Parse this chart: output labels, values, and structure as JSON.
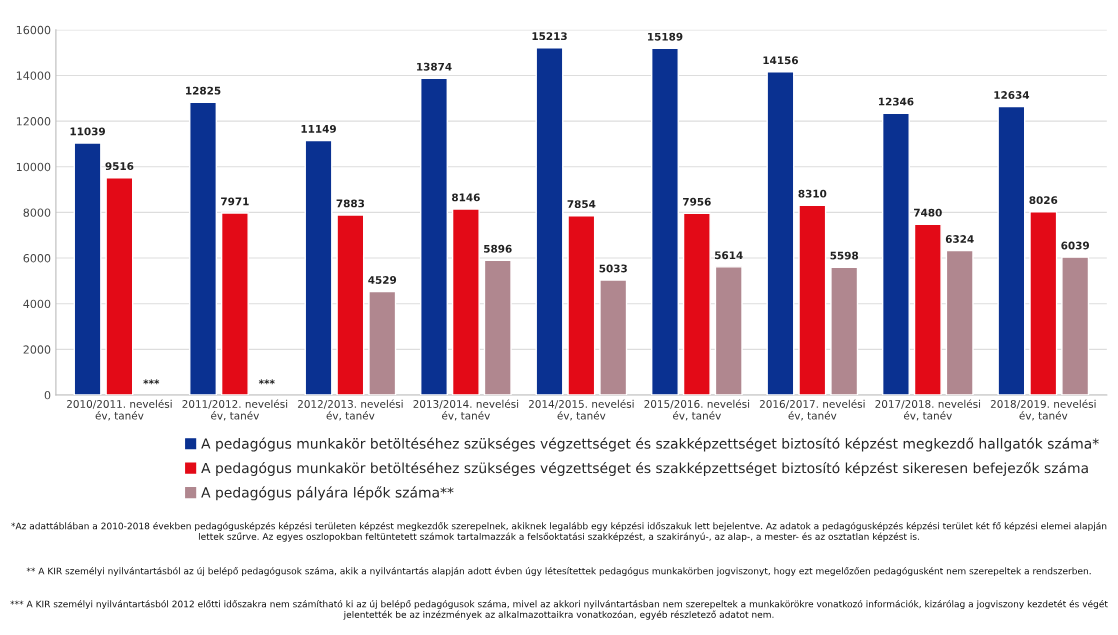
{
  "chart_data": {
    "type": "bar",
    "categories": [
      "2010/2011. nevelési\név, tanév",
      "2011/2012. nevelési\név, tanév",
      "2012/2013. nevelési\név, tanév",
      "2013/2014. nevelési\név, tanév",
      "2014/2015. nevelési\név, tanév",
      "2015/2016. nevelési\név, tanév",
      "2016/2017. nevelési\név, tanév",
      "2017/2018. nevelési\név, tanév",
      "2018/2019. nevelési\név, tanév"
    ],
    "series": [
      {
        "name": "A pedagógus munkakör betöltéséhez szükséges végzettséget és szakképzettséget biztosító képzést megkezdő hallgatók száma*",
        "color": "#0a3191",
        "values": [
          11039,
          12825,
          11149,
          13874,
          15213,
          15189,
          14156,
          12346,
          12634
        ]
      },
      {
        "name": "A pedagógus munkakör betöltéséhez szükséges végzettséget és szakképzettséget biztosító képzést sikeresen befejezők száma",
        "color": "#e30a17",
        "values": [
          9516,
          7971,
          7883,
          8146,
          7854,
          7956,
          8310,
          7480,
          8026
        ]
      },
      {
        "name": "A pedagógus pályára lépők száma**",
        "color": "#b0878f",
        "values": [
          null,
          null,
          4529,
          5896,
          5033,
          5614,
          5598,
          6324,
          6039
        ],
        "value_labels": [
          "***",
          "***",
          "4529",
          "5896",
          "5033",
          "5614",
          "5598",
          "6324",
          "6039"
        ]
      }
    ],
    "data_labels": true,
    "ylim": [
      0,
      16000
    ],
    "yticks": [
      0,
      2000,
      4000,
      6000,
      8000,
      10000,
      12000,
      14000,
      16000
    ],
    "grid": "y",
    "legend": "bottom",
    "annotations": [
      "*Az adattáblában a 2010-2018 években pedagógusképzés képzési területen képzést megkezdők szerepelnek, akiknek legalább egy képzési időszakuk lett bejelentve. Az adatok a pedagógusképzés képzési terület két fő képzési elemei alapján lettek szűrve. Az egyes oszlopokban feltüntetett számok tartalmazzák a felsőoktatási szakképzést, a szakirányú-, az alap-, a mester- és az osztatlan képzést is.",
      "** A KIR személyi nyilvántartásból az új belépő pedagógusok száma, akik a nyilvántartás alapján adott évben úgy létesítettek pedagógus munkakörben jogviszonyt, hogy ezt megelőzően pedagógusként nem szerepeltek a rendszerben.",
      "*** A KIR személyi nyilvántartásból 2012 előtti időszakra nem számítható ki az új belépő pedagógusok száma, mivel az akkori nyilvántartásban nem szerepeltek a munkakörökre vonatkozó információk, kizárólag a jogviszony kezdetét és végét jelentették be az inzézmények az alkalmazottaikra vonatkozóan, egyéb részletező adatot nem."
    ]
  }
}
